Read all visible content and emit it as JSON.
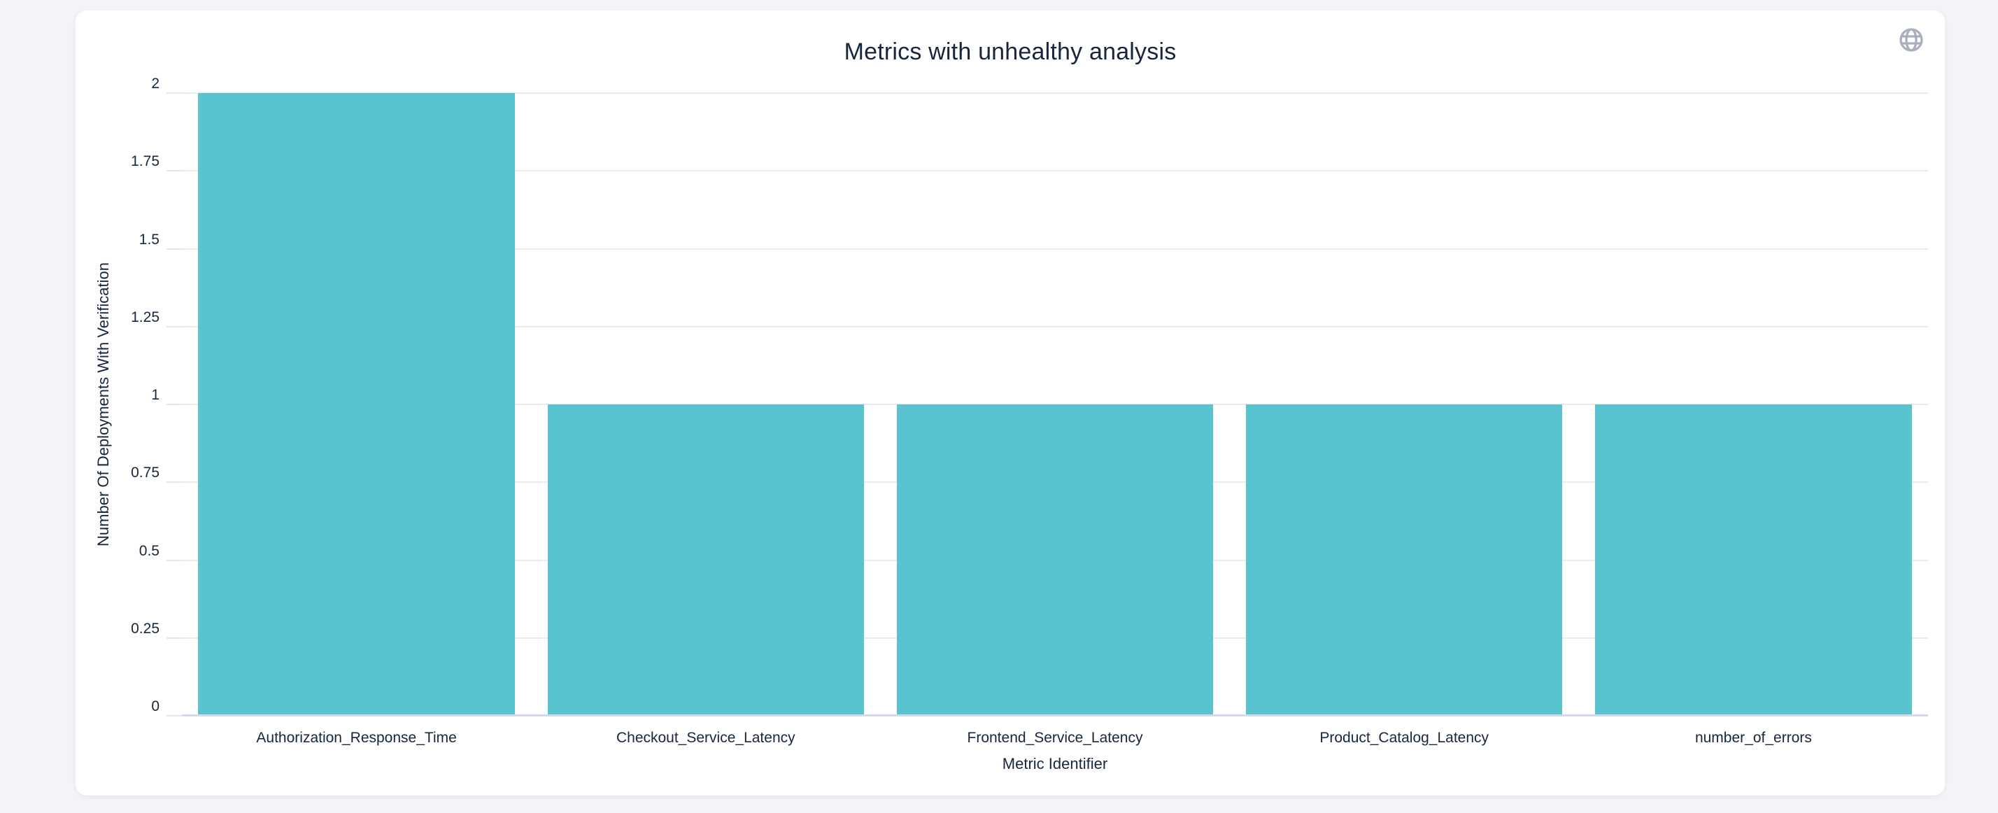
{
  "page": {
    "background_color": "#f3f4f7",
    "card_color": "#ffffff"
  },
  "card": {
    "title": "Metrics with unhealthy analysis",
    "corner_icon": "globe-icon"
  },
  "chart_data": {
    "type": "bar",
    "title": "Metrics with unhealthy analysis",
    "categories": [
      "Authorization_Response_Time",
      "Checkout_Service_Latency",
      "Frontend_Service_Latency",
      "Product_Catalog_Latency",
      "number_of_errors"
    ],
    "values": [
      2,
      1,
      1,
      1,
      1
    ],
    "xlabel": "Metric Identifier",
    "ylabel": "Number Of Deployments With Verification",
    "ylim": [
      0,
      2
    ],
    "ytick_step": 0.25,
    "ytick_labels": [
      "0",
      "0.25",
      "0.5",
      "0.75",
      "1",
      "1.25",
      "1.5",
      "1.75",
      "2"
    ],
    "grid": true,
    "legend": "none",
    "bar_color": "#59c4cf",
    "grid_color": "#ebebeb",
    "zero_line_color": "#d2d9e8",
    "text_color": "#17263e"
  }
}
